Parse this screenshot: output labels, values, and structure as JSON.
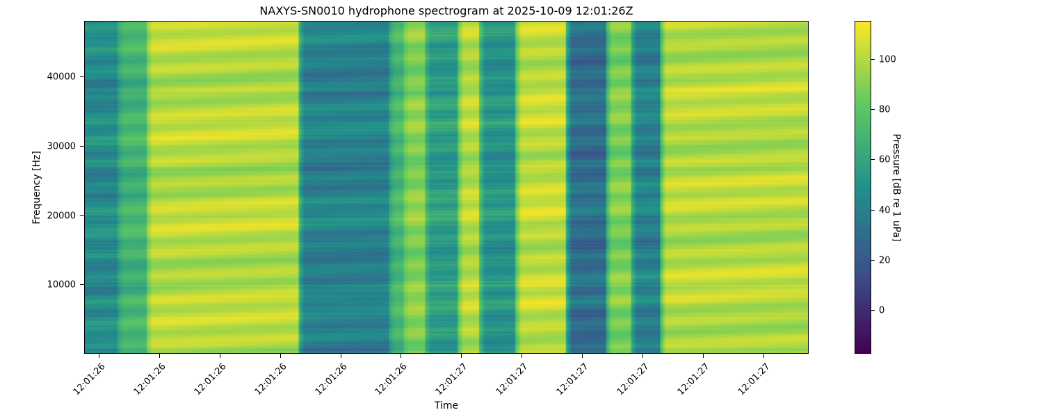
{
  "chart_data": {
    "type": "heatmap",
    "title": "NAXYS-SN0010 hydrophone spectrogram at 2025-10-09 12:01:26Z",
    "xlabel": "Time",
    "ylabel": "Frequency [Hz]",
    "colorbar_label": "Pressure [dB re 1 uPa]",
    "colormap": "viridis",
    "colormap_stops": [
      "#440154",
      "#3b528b",
      "#21918c",
      "#5ec962",
      "#fde725"
    ],
    "ylim": [
      0,
      48000
    ],
    "clim": [
      -18,
      115
    ],
    "y_ticks": [
      10000,
      20000,
      30000,
      40000
    ],
    "y_tick_labels": [
      "10000",
      "20000",
      "30000",
      "40000"
    ],
    "x_tick_labels": [
      "12:01:26",
      "12:01:26",
      "12:01:26",
      "12:01:26",
      "12:01:26",
      "12:01:26",
      "12:01:27",
      "12:01:27",
      "12:01:27",
      "12:01:27",
      "12:01:27",
      "12:01:27"
    ],
    "colorbar_ticks": [
      0,
      20,
      40,
      60,
      80,
      100
    ],
    "colorbar_tick_labels": [
      "0",
      "20",
      "40",
      "60",
      "80",
      "100"
    ],
    "time_segments_fraction": [
      {
        "start": 0.0,
        "end": 0.045,
        "level_db": 45
      },
      {
        "start": 0.045,
        "end": 0.085,
        "level_db": 68
      },
      {
        "start": 0.085,
        "end": 0.295,
        "level_db": 100
      },
      {
        "start": 0.295,
        "end": 0.42,
        "level_db": 40
      },
      {
        "start": 0.42,
        "end": 0.44,
        "level_db": 70
      },
      {
        "start": 0.44,
        "end": 0.47,
        "level_db": 90
      },
      {
        "start": 0.47,
        "end": 0.515,
        "level_db": 55
      },
      {
        "start": 0.515,
        "end": 0.545,
        "level_db": 100
      },
      {
        "start": 0.545,
        "end": 0.595,
        "level_db": 50
      },
      {
        "start": 0.595,
        "end": 0.665,
        "level_db": 102
      },
      {
        "start": 0.665,
        "end": 0.72,
        "level_db": 30
      },
      {
        "start": 0.72,
        "end": 0.755,
        "level_db": 88
      },
      {
        "start": 0.755,
        "end": 0.795,
        "level_db": 40
      },
      {
        "start": 0.795,
        "end": 1.0,
        "level_db": 100
      }
    ]
  }
}
